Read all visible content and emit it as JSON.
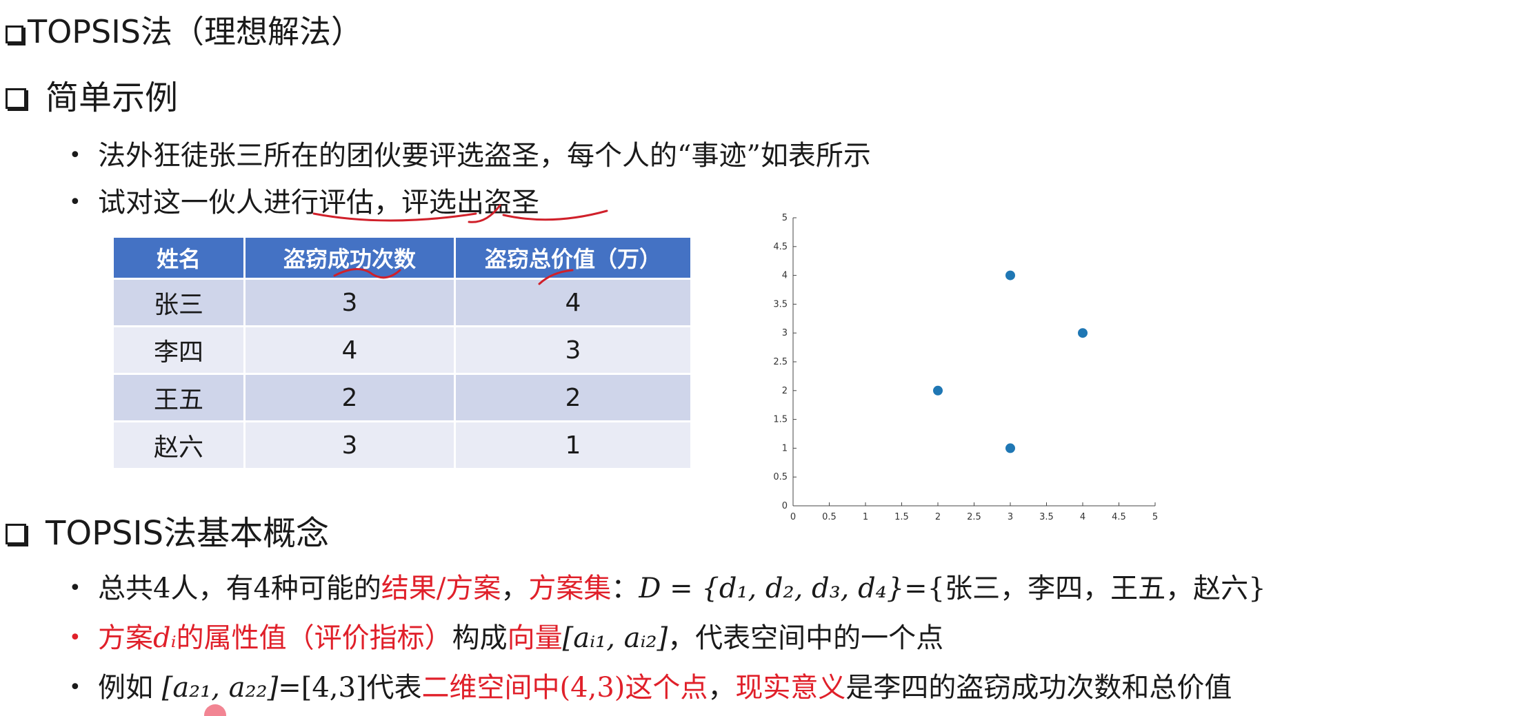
{
  "title": "TOPSIS法（理想解法）",
  "section1": {
    "heading": "简单示例",
    "bullets": [
      "法外狂徒张三所在的团伙要评选盗圣，每个人的“事迹”如表所示",
      "试对这一伙人进行评估，评选出盗圣"
    ]
  },
  "table": {
    "headers": [
      "姓名",
      "盗窃成功次数",
      "盗窃总价值（万）"
    ],
    "rows": [
      [
        "张三",
        "3",
        "4"
      ],
      [
        "李四",
        "4",
        "3"
      ],
      [
        "王五",
        "2",
        "2"
      ],
      [
        "赵六",
        "3",
        "1"
      ]
    ]
  },
  "chart_data": {
    "type": "scatter",
    "title": "",
    "xlabel": "",
    "ylabel": "",
    "x": [
      3,
      4,
      2,
      3
    ],
    "y": [
      4,
      3,
      2,
      1
    ],
    "xlim": [
      0,
      5
    ],
    "ylim": [
      0,
      5
    ],
    "xticks": [
      "0",
      "0.5",
      "1",
      "1.5",
      "2",
      "2.5",
      "3",
      "3.5",
      "4",
      "4.5",
      "5"
    ],
    "yticks": [
      "0",
      "0.5",
      "1",
      "1.5",
      "2",
      "2.5",
      "3",
      "3.5",
      "4",
      "4.5",
      "5"
    ],
    "point_color": "#1f77b4",
    "grid": false
  },
  "section2": {
    "heading": "TOPSIS法基本概念",
    "b1": {
      "a": "总共4人，有4种可能的",
      "b": "结果/方案",
      "c": "，",
      "d": "方案集",
      "e": "：",
      "f": "D = {d₁, d₂, d₃, d₄}",
      "g": "={张三，李四，王五，赵六}"
    },
    "b2": {
      "a": "方案",
      "b": "dᵢ",
      "c": "的属性值（评价指标）",
      "d": "构成",
      "e": "向量",
      "f": "[aᵢ₁, aᵢ₂]",
      "g": "，代表空间中的一个点"
    },
    "b3": {
      "a": "例如 ",
      "b": "[a₂₁, a₂₂]",
      "c": "=[4,3]代表",
      "d": "二维空间中(4,3)这个点",
      "e": "，",
      "f": "现实意义",
      "g": "是李四的盗窃成功次数和总价值"
    }
  },
  "colors": {
    "accent_red": "#e0202a",
    "table_header": "#4472c4",
    "row_odd": "#cfd5ea",
    "row_even": "#e9ebf5",
    "annotation_ink": "#d0202a"
  }
}
